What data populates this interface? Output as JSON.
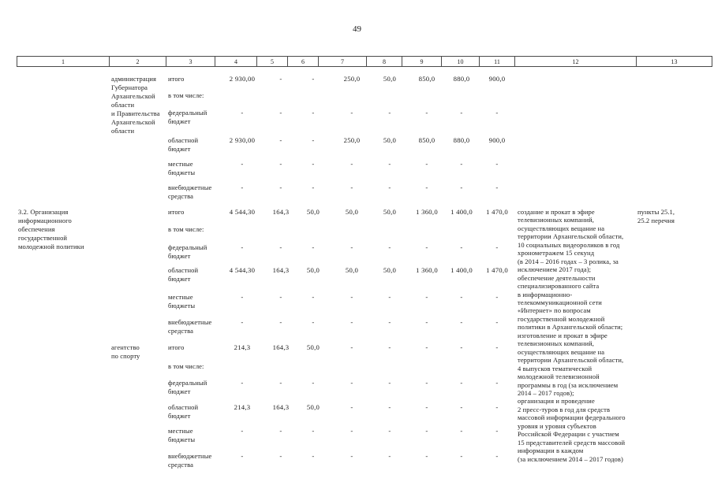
{
  "page": {
    "number": "49"
  },
  "table": {
    "header_columns": [
      "1",
      "2",
      "3",
      "4",
      "5",
      "6",
      "7",
      "8",
      "9",
      "10",
      "11",
      "12",
      "13"
    ],
    "blocks": [
      {
        "col1": "",
        "col2": "администрация\nГубернатора\nАрхангельской\nобласти\nи Правительства\nАрхангельской\nобласти",
        "col12": "",
        "col13": "",
        "rows": [
          {
            "label": "итого",
            "values": [
              "2 930,00",
              "-",
              "-",
              "250,0",
              "50,0",
              "850,0",
              "880,0",
              "900,0"
            ]
          },
          {
            "label": "в том числе:",
            "values": []
          },
          {
            "label": "федеральный\nбюджет",
            "values": [
              "-",
              "-",
              "-",
              "-",
              "-",
              "-",
              "-",
              "-"
            ]
          },
          {
            "label": "областной\nбюджет",
            "values": [
              "2 930,00",
              "-",
              "-",
              "250,0",
              "50,0",
              "850,0",
              "880,0",
              "900,0"
            ]
          },
          {
            "label": "местные\nбюджеты",
            "values": [
              "-",
              "-",
              "-",
              "-",
              "-",
              "-",
              "-",
              "-"
            ]
          },
          {
            "label": "внебюджетные\nсредства",
            "values": [
              "-",
              "-",
              "-",
              "-",
              "-",
              "-",
              "-",
              "-"
            ]
          }
        ]
      },
      {
        "col1": "3.2. Организация\nинформационного\nобеспечения\nгосударственной\nмолодежной политики",
        "col2": "",
        "col12": "создание и прокат в эфире\nтелевизионных компаний,\nосуществляющих вещание на\nтерритории Архангельской области,\n10 социальных видеороликов в год\nхронометражем 15 секунд\n(в 2014 – 2016 годах – 3 ролика, за\nисключением 2017 года);\nобеспечение деятельности\nспециализированного сайта\nв информационно-\nтелекоммуникационной сети\n«Интернет» по вопросам\nгосударственной молодежной\nполитики в Архангельской области;\nизготовление и прокат в эфире\nтелевизионных компаний,\nосуществляющих вещание на\nтерритории Архангельской области,\n4 выпусков тематической\nмолодежной телевизионной\nпрограммы в год (за исключением\n2014 – 2017 годов);\nорганизация и проведение\n2 пресс-туров в год для средств\nмассовой информации федерального\nуровня и уровня субъектов\nРоссийской Федерации с участием\n15 представителей средств массовой\nинформации в каждом\n(за исключением 2014 – 2017 годов)",
        "col13": "пункты 25.1,\n25.2 перечня",
        "rows": [
          {
            "label": "итого",
            "values": [
              "4 544,30",
              "164,3",
              "50,0",
              "50,0",
              "50,0",
              "1 360,0",
              "1 400,0",
              "1 470,0"
            ]
          },
          {
            "label": "в том числе:",
            "values": []
          },
          {
            "label": "федеральный\nбюджет",
            "values": [
              "-",
              "-",
              "-",
              "-",
              "-",
              "-",
              "-",
              "-"
            ]
          },
          {
            "label": "областной\nбюджет",
            "values": [
              "4 544,30",
              "164,3",
              "50,0",
              "50,0",
              "50,0",
              "1 360,0",
              "1 400,0",
              "1 470,0"
            ]
          },
          {
            "label": "местные\nбюджеты",
            "values": [
              "-",
              "-",
              "-",
              "-",
              "-",
              "-",
              "-",
              "-"
            ]
          },
          {
            "label": "внебюджетные\nсредства",
            "values": [
              "-",
              "-",
              "-",
              "-",
              "-",
              "-",
              "-",
              "-"
            ]
          }
        ]
      },
      {
        "col1": "",
        "col2": "агентство\nпо спорту",
        "col12": "",
        "col13": "",
        "rows": [
          {
            "label": "итого",
            "values": [
              "214,3",
              "164,3",
              "50,0",
              "-",
              "-",
              "-",
              "-",
              "-"
            ]
          },
          {
            "label": "в том числе:",
            "values": []
          },
          {
            "label": "федеральный\nбюджет",
            "values": [
              "-",
              "-",
              "-",
              "-",
              "-",
              "-",
              "-",
              "-"
            ]
          },
          {
            "label": "областной\nбюджет",
            "values": [
              "214,3",
              "164,3",
              "50,0",
              "-",
              "-",
              "-",
              "-",
              "-"
            ]
          },
          {
            "label": "местные\nбюджеты",
            "values": [
              "-",
              "-",
              "-",
              "-",
              "-",
              "-",
              "-",
              "-"
            ]
          },
          {
            "label": "внебюджетные\nсредства",
            "values": [
              "-",
              "-",
              "-",
              "-",
              "-",
              "-",
              "-",
              "-"
            ]
          }
        ]
      }
    ]
  }
}
